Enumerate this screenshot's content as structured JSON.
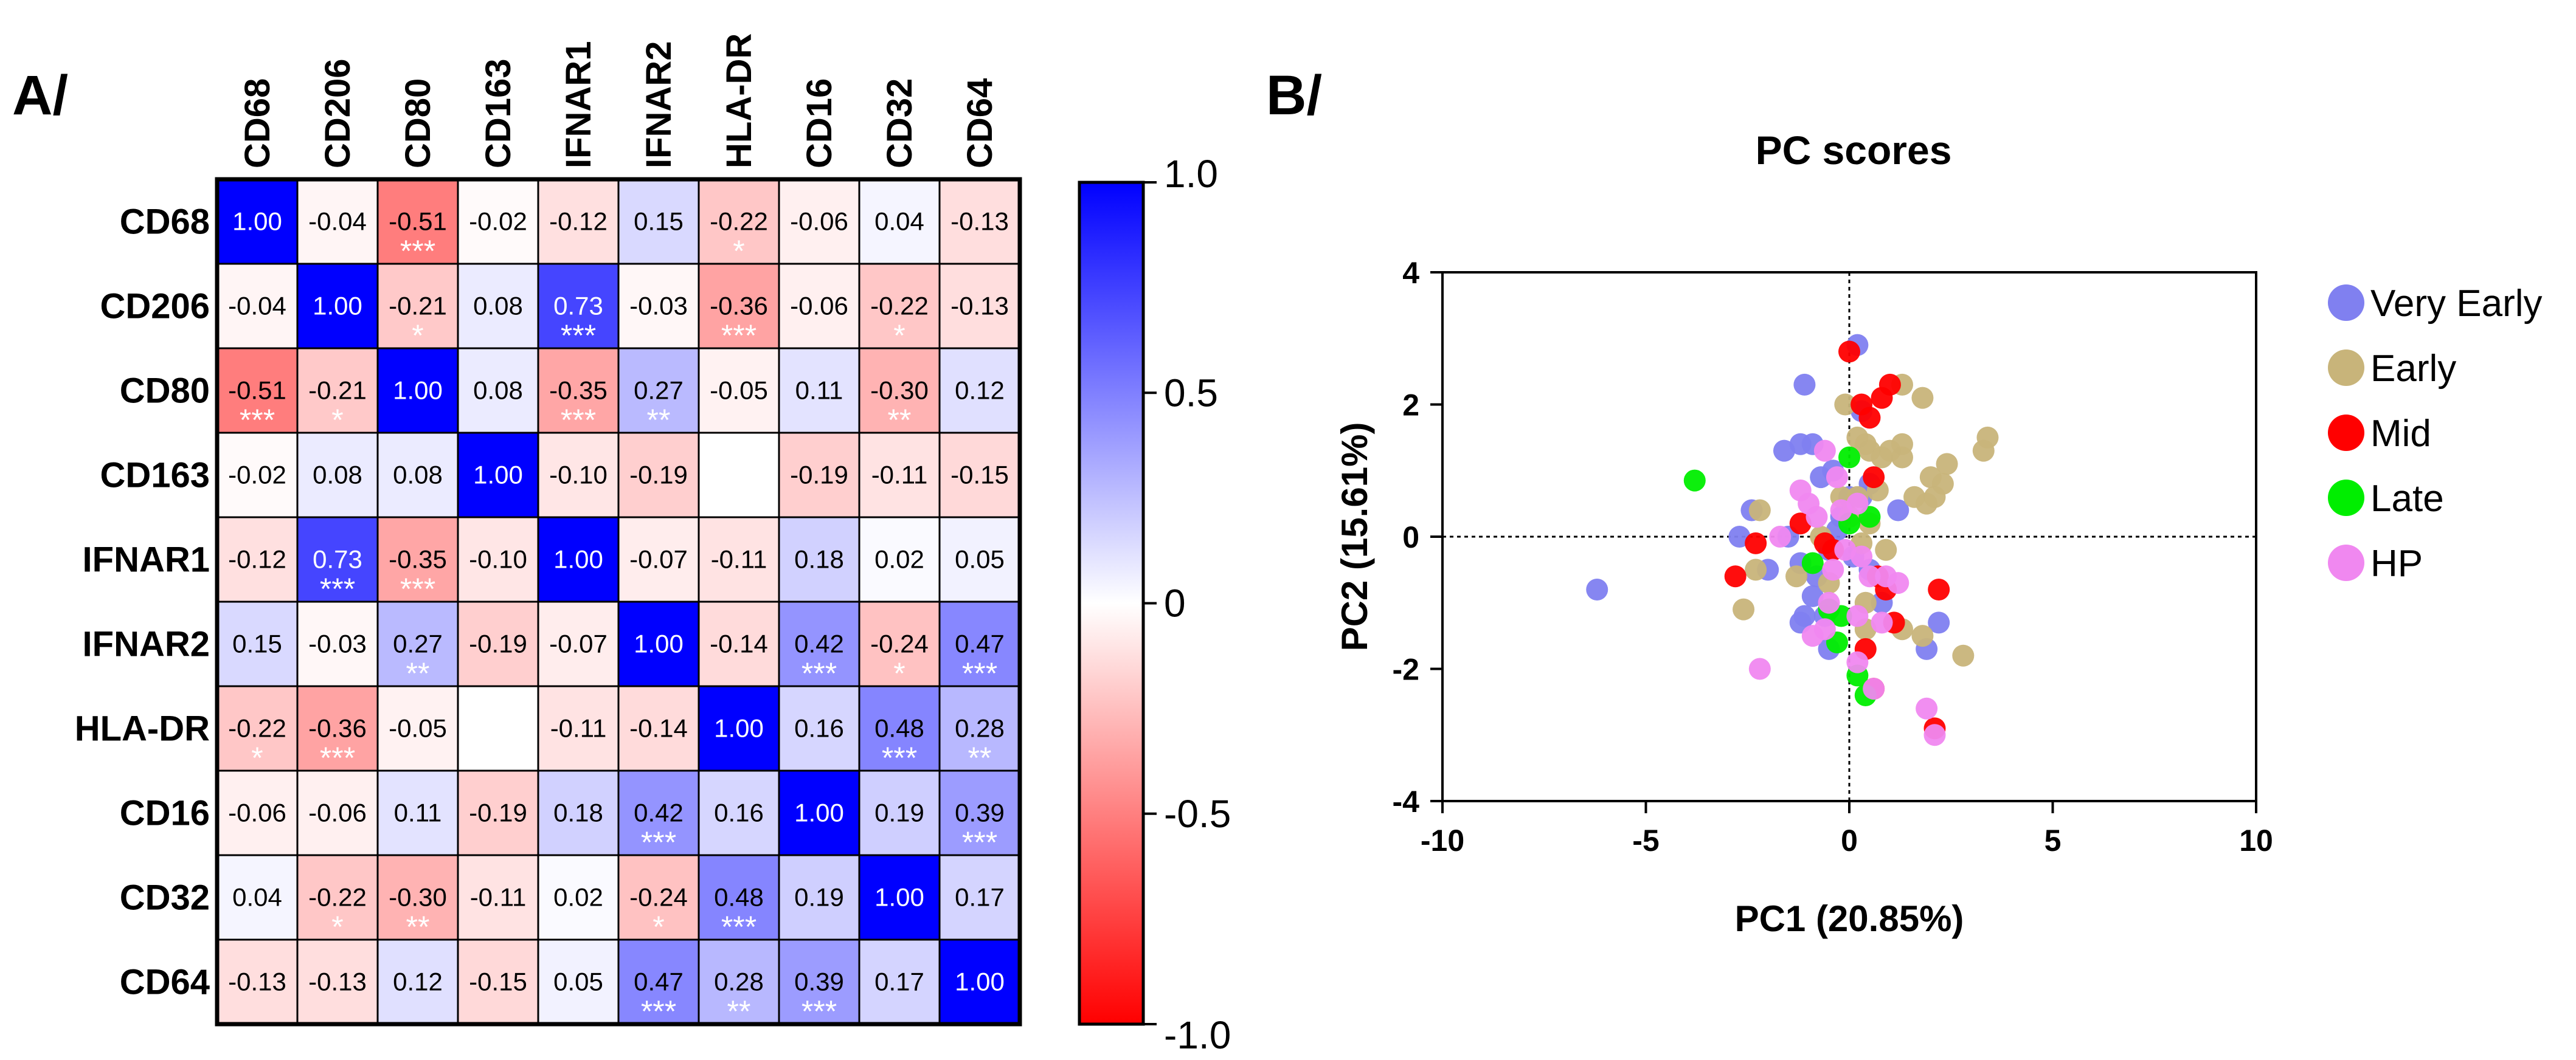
{
  "chart_data": [
    {
      "type": "heatmap",
      "panel_label": "A/",
      "variables": [
        "CD68",
        "CD206",
        "CD80",
        "CD163",
        "IFNAR1",
        "IFNAR2",
        "HLA-DR",
        "CD16",
        "CD32",
        "CD64"
      ],
      "matrix": [
        [
          1.0,
          -0.04,
          -0.51,
          -0.02,
          -0.12,
          0.15,
          -0.22,
          -0.06,
          0.04,
          -0.13
        ],
        [
          -0.04,
          1.0,
          -0.21,
          0.08,
          0.73,
          -0.03,
          -0.36,
          -0.06,
          -0.22,
          -0.13
        ],
        [
          -0.51,
          -0.21,
          1.0,
          0.08,
          -0.35,
          0.27,
          -0.05,
          0.11,
          -0.3,
          0.12
        ],
        [
          -0.02,
          0.08,
          0.08,
          1.0,
          -0.1,
          -0.19,
          null,
          -0.19,
          -0.11,
          -0.15
        ],
        [
          -0.12,
          0.73,
          -0.35,
          -0.1,
          1.0,
          -0.07,
          -0.11,
          0.18,
          0.02,
          0.05
        ],
        [
          0.15,
          -0.03,
          0.27,
          -0.19,
          -0.07,
          1.0,
          -0.14,
          0.42,
          -0.24,
          0.47
        ],
        [
          -0.22,
          -0.36,
          -0.05,
          null,
          -0.11,
          -0.14,
          1.0,
          0.16,
          0.48,
          0.28
        ],
        [
          -0.06,
          -0.06,
          0.11,
          -0.19,
          0.18,
          0.42,
          0.16,
          1.0,
          0.19,
          0.39
        ],
        [
          0.04,
          -0.22,
          -0.3,
          -0.11,
          0.02,
          -0.24,
          0.48,
          0.19,
          1.0,
          0.17
        ],
        [
          -0.13,
          -0.13,
          0.12,
          -0.15,
          0.05,
          0.47,
          0.28,
          0.39,
          0.17,
          1.0
        ]
      ],
      "labels": [
        [
          "1.00",
          "-0.04",
          "-0.51",
          "-0.02",
          "-0.12",
          "0.15",
          "-0.22",
          "-0.06",
          "0.04",
          "-0.13"
        ],
        [
          "-0.04",
          "1.00",
          "-0.21",
          "0.08",
          "0.73",
          "-0.03",
          "-0.36",
          "-0.06",
          "-0.22",
          "-0.13"
        ],
        [
          "-0.51",
          "-0.21",
          "1.00",
          "0.08",
          "-0.35",
          "0.27",
          "-0.05",
          "0.11",
          "-0.30",
          "0.12"
        ],
        [
          "-0.02",
          "0.08",
          "0.08",
          "1.00",
          "-0.10",
          "-0.19",
          "",
          "-0.19",
          "-0.11",
          "-0.15"
        ],
        [
          "-0.12",
          "0.73",
          "-0.35",
          "-0.10",
          "1.00",
          "-0.07",
          "-0.11",
          "0.18",
          "0.02",
          "0.05"
        ],
        [
          "0.15",
          "-0.03",
          "0.27",
          "-0.19",
          "-0.07",
          "1.00",
          "-0.14",
          "0.42",
          "-0.24",
          "0.47"
        ],
        [
          "-0.22",
          "-0.36",
          "-0.05",
          "",
          "-0.11",
          "-0.14",
          "1.00",
          "0.16",
          "0.48",
          "0.28"
        ],
        [
          "-0.06",
          "-0.06",
          "0.11",
          "-0.19",
          "0.18",
          "0.42",
          "0.16",
          "1.00",
          "0.19",
          "0.39"
        ],
        [
          "0.04",
          "-0.22",
          "-0.30",
          "-0.11",
          "0.02",
          "-0.24",
          "0.48",
          "0.19",
          "1.00",
          "0.17"
        ],
        [
          "-0.13",
          "-0.13",
          "0.12",
          "-0.15",
          "0.05",
          "0.47",
          "0.28",
          "0.39",
          "0.17",
          "1.00"
        ]
      ],
      "significance": [
        [
          "",
          "",
          "***",
          "",
          "",
          "",
          "*",
          "",
          "",
          ""
        ],
        [
          "",
          "",
          "*",
          "",
          "***",
          "",
          "***",
          "",
          "*",
          ""
        ],
        [
          "***",
          "*",
          "",
          "",
          "***",
          "**",
          "",
          "",
          "**",
          ""
        ],
        [
          "",
          "",
          "",
          "",
          "",
          "",
          "",
          "",
          "",
          ""
        ],
        [
          "",
          "***",
          "***",
          "",
          "",
          "",
          "",
          "",
          "",
          ""
        ],
        [
          "",
          "",
          "**",
          "",
          "",
          "",
          "",
          "***",
          "*",
          "***"
        ],
        [
          "*",
          "***",
          "",
          "",
          "",
          "",
          "",
          "",
          "***",
          "**"
        ],
        [
          "",
          "",
          "",
          "",
          "",
          "***",
          "",
          "",
          "",
          "***"
        ],
        [
          "",
          "*",
          "**",
          "",
          "",
          "*",
          "***",
          "",
          "",
          ""
        ],
        [
          "",
          "",
          "",
          "",
          "",
          "***",
          "**",
          "***",
          "",
          ""
        ]
      ],
      "colorbar": {
        "min": -1.0,
        "max": 1.0,
        "ticks": [
          1.0,
          0.5,
          0,
          -0.5,
          -1.0
        ],
        "tick_labels": [
          "1.0",
          "0.5",
          "0",
          "-0.5",
          "-1.0"
        ],
        "colors": {
          "negative": "#ff0000",
          "zero": "#ffffff",
          "positive": "#0000ff"
        }
      }
    },
    {
      "type": "scatter",
      "panel_label": "B/",
      "title": "PC scores",
      "xlabel": "PC1 (20.85%)",
      "ylabel": "PC2 (15.61%)",
      "xlim": [
        -10,
        10
      ],
      "ylim": [
        -4,
        4
      ],
      "xticks": [
        "-10",
        "-5",
        "0",
        "5",
        "10"
      ],
      "yticks": [
        "4",
        "2",
        "0",
        "-2",
        "-4"
      ],
      "xtick_values": [
        -10,
        -5,
        0,
        5,
        10
      ],
      "ytick_values": [
        4,
        2,
        0,
        -2,
        -4
      ],
      "legend_position": "right",
      "series": [
        {
          "name": "Very Early",
          "color": "#8080f0",
          "points": [
            [
              -6.2,
              -0.8
            ],
            [
              -1.1,
              2.3
            ],
            [
              -1.6,
              1.3
            ],
            [
              -1.2,
              1.4
            ],
            [
              -0.9,
              1.4
            ],
            [
              -2.4,
              0.4
            ],
            [
              -0.7,
              0.9
            ],
            [
              -0.4,
              1.0
            ],
            [
              0.0,
              0.6
            ],
            [
              0.3,
              0.6
            ],
            [
              0.5,
              0.8
            ],
            [
              -0.2,
              0.3
            ],
            [
              1.2,
              0.4
            ],
            [
              -2.7,
              0.0
            ],
            [
              -1.5,
              0.0
            ],
            [
              -0.5,
              -0.2
            ],
            [
              -2.0,
              -0.5
            ],
            [
              -1.2,
              -0.4
            ],
            [
              -0.8,
              -0.6
            ],
            [
              -1.1,
              -1.2
            ],
            [
              -0.6,
              -1.2
            ],
            [
              -1.2,
              -1.3
            ],
            [
              -0.5,
              -1.7
            ],
            [
              1.9,
              -1.7
            ],
            [
              2.2,
              -1.3
            ],
            [
              0.2,
              2.9
            ],
            [
              0.3,
              1.9
            ],
            [
              0.1,
              -0.3
            ],
            [
              -0.3,
              0.1
            ],
            [
              0.5,
              -0.5
            ],
            [
              0.8,
              -1.0
            ],
            [
              -0.9,
              -0.9
            ]
          ]
        },
        {
          "name": "Early",
          "color": "#c8b47a",
          "points": [
            [
              -0.1,
              2.0
            ],
            [
              1.3,
              2.3
            ],
            [
              1.8,
              2.1
            ],
            [
              0.2,
              1.5
            ],
            [
              0.4,
              1.4
            ],
            [
              0.5,
              1.3
            ],
            [
              0.8,
              1.2
            ],
            [
              1.0,
              1.3
            ],
            [
              1.3,
              1.4
            ],
            [
              1.3,
              1.2
            ],
            [
              3.4,
              1.5
            ],
            [
              3.3,
              1.3
            ],
            [
              2.4,
              1.1
            ],
            [
              2.0,
              0.9
            ],
            [
              2.3,
              0.8
            ],
            [
              1.6,
              0.6
            ],
            [
              1.9,
              0.5
            ],
            [
              2.1,
              0.6
            ],
            [
              0.7,
              0.7
            ],
            [
              -2.2,
              0.4
            ],
            [
              -0.2,
              0.6
            ],
            [
              0.0,
              0.3
            ],
            [
              0.5,
              0.2
            ],
            [
              -0.7,
              0.0
            ],
            [
              0.3,
              -0.1
            ],
            [
              0.9,
              -0.2
            ],
            [
              -1.3,
              -0.6
            ],
            [
              -2.3,
              -0.5
            ],
            [
              -2.6,
              -1.1
            ],
            [
              0.4,
              -1.4
            ],
            [
              1.3,
              -1.4
            ],
            [
              1.8,
              -1.5
            ],
            [
              2.8,
              -1.8
            ],
            [
              0.4,
              -1.0
            ],
            [
              -0.5,
              -0.7
            ],
            [
              0.2,
              0.6
            ]
          ]
        },
        {
          "name": "Mid",
          "color": "#ff0000",
          "points": [
            [
              0.0,
              2.8
            ],
            [
              0.3,
              2.0
            ],
            [
              0.8,
              2.1
            ],
            [
              1.0,
              2.3
            ],
            [
              0.5,
              1.8
            ],
            [
              0.6,
              0.9
            ],
            [
              -2.3,
              -0.1
            ],
            [
              -2.8,
              -0.6
            ],
            [
              -0.4,
              -0.2
            ],
            [
              0.7,
              -0.6
            ],
            [
              1.1,
              -1.3
            ],
            [
              0.4,
              -1.7
            ],
            [
              0.6,
              -2.3
            ],
            [
              2.2,
              -0.8
            ],
            [
              2.1,
              -2.9
            ],
            [
              -1.2,
              0.2
            ],
            [
              -0.6,
              -0.1
            ],
            [
              0.9,
              -0.8
            ]
          ]
        },
        {
          "name": "Late",
          "color": "#00ee00",
          "points": [
            [
              -3.8,
              0.85
            ],
            [
              0.0,
              1.2
            ],
            [
              0.5,
              0.3
            ],
            [
              -0.9,
              -0.4
            ],
            [
              -0.5,
              -1.1
            ],
            [
              -0.2,
              -1.2
            ],
            [
              -0.3,
              -1.6
            ],
            [
              0.2,
              -2.1
            ],
            [
              0.4,
              -2.4
            ],
            [
              0.0,
              0.2
            ]
          ]
        },
        {
          "name": "HP",
          "color": "#f088f0",
          "points": [
            [
              -0.6,
              1.3
            ],
            [
              -0.3,
              0.9
            ],
            [
              -0.2,
              0.4
            ],
            [
              0.2,
              0.5
            ],
            [
              -1.0,
              0.5
            ],
            [
              -1.7,
              0.0
            ],
            [
              -0.8,
              0.3
            ],
            [
              -0.1,
              -0.2
            ],
            [
              0.3,
              -0.3
            ],
            [
              -0.4,
              -0.5
            ],
            [
              0.5,
              -0.6
            ],
            [
              0.9,
              -0.6
            ],
            [
              1.2,
              -0.7
            ],
            [
              0.2,
              -1.2
            ],
            [
              0.8,
              -1.3
            ],
            [
              -0.6,
              -1.4
            ],
            [
              -0.9,
              -1.5
            ],
            [
              0.2,
              -1.9
            ],
            [
              0.6,
              -2.3
            ],
            [
              -2.2,
              -2.0
            ],
            [
              1.9,
              -2.6
            ],
            [
              2.1,
              -3.0
            ],
            [
              -1.2,
              0.7
            ],
            [
              -0.5,
              -1.0
            ]
          ]
        }
      ]
    }
  ]
}
